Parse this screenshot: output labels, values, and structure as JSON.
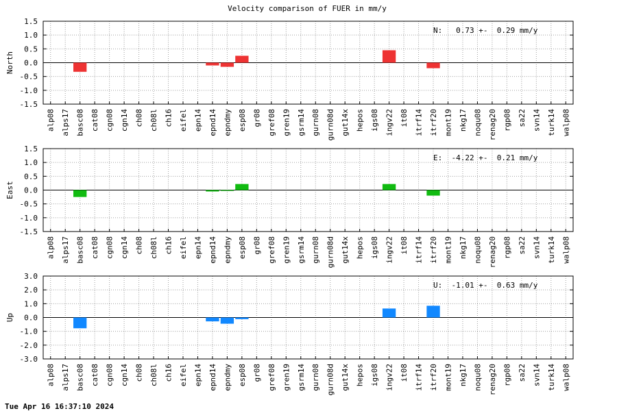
{
  "chart_data": {
    "type": "bar",
    "title": "Velocity comparison of FUER in mm/y",
    "footer": "Tue Apr 16 16:37:10 2024",
    "categories": [
      "alp08",
      "alps17",
      "basc08",
      "cat08",
      "cgn08",
      "cgn14",
      "ch08",
      "ch08l",
      "ch16",
      "eifel",
      "epn14",
      "epnd14",
      "epndmy",
      "esp08",
      "gr08",
      "gref08",
      "gren19",
      "gsrm14",
      "gurn08",
      "gurn08d",
      "gut14x",
      "hepos",
      "igs08",
      "ingv22",
      "it08",
      "itrf14",
      "itrf20",
      "mont19",
      "nkg17",
      "noqu08",
      "renag20",
      "rgp08",
      "sa22",
      "svn14",
      "turk14",
      "walp08"
    ],
    "panels": [
      {
        "ylabel": "North",
        "color": "#ee3333",
        "ylim": [
          -1.5,
          1.5
        ],
        "yticks": [
          "1.5",
          "1.0",
          "0.5",
          "0.0",
          "-0.5",
          "-1.0",
          "-1.5"
        ],
        "stat": "N:   0.73 +-  0.29 mm/y",
        "values": [
          0,
          0,
          -0.33,
          0,
          0,
          0,
          0,
          0,
          0,
          0,
          0,
          -0.1,
          -0.15,
          0.25,
          0,
          0,
          0,
          0,
          0,
          0,
          0,
          0,
          0,
          0.45,
          0,
          0,
          -0.2,
          0,
          0,
          0,
          0,
          0,
          0,
          0,
          0,
          0
        ]
      },
      {
        "ylabel": "East",
        "color": "#11bb11",
        "ylim": [
          -1.5,
          1.5
        ],
        "yticks": [
          "1.5",
          "1.0",
          "0.5",
          "0.0",
          "-0.5",
          "-1.0",
          "-1.5"
        ],
        "stat": "E:  -4.22 +-  0.21 mm/y",
        "values": [
          0,
          0,
          -0.25,
          0,
          0,
          0,
          0,
          0,
          0,
          0,
          0,
          -0.05,
          -0.03,
          0.22,
          0,
          0,
          0,
          0,
          0,
          0,
          0,
          0,
          0,
          0.22,
          0,
          0,
          -0.2,
          0,
          0,
          0,
          0,
          0,
          0,
          0,
          0,
          0
        ]
      },
      {
        "ylabel": "Up",
        "color": "#1188ff",
        "ylim": [
          -3.0,
          3.0
        ],
        "yticks": [
          "3.0",
          "2.0",
          "1.0",
          "0.0",
          "-1.0",
          "-2.0",
          "-3.0"
        ],
        "stat": "U:  -1.01 +-  0.63 mm/y",
        "values": [
          0,
          0,
          -0.78,
          0,
          0,
          0,
          0,
          0,
          0,
          0,
          0,
          -0.28,
          -0.45,
          -0.12,
          0,
          0,
          0,
          0,
          0,
          0,
          0,
          0,
          0,
          0.65,
          0,
          0,
          0.85,
          0,
          0,
          0,
          0,
          0,
          0,
          0,
          0,
          0
        ]
      }
    ]
  }
}
